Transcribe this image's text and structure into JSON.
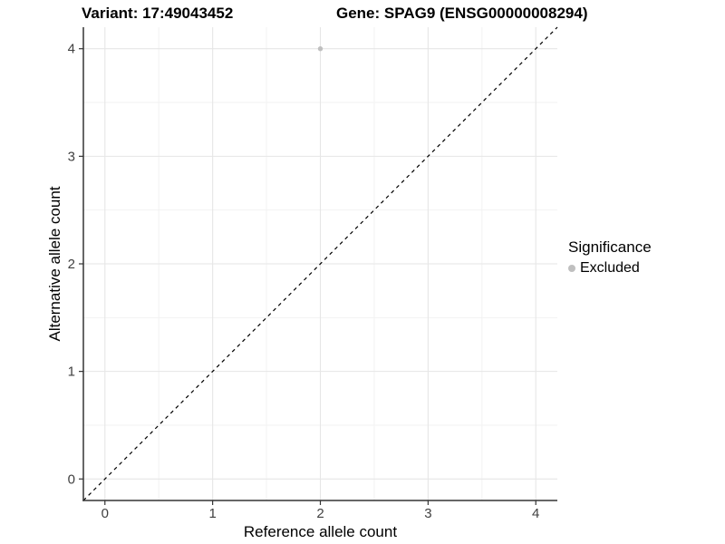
{
  "chart_data": {
    "type": "scatter",
    "title_left": "Variant: 17:49043452",
    "title_right": "Gene: SPAG9 (ENSG00000008294)",
    "xlabel": "Reference allele count",
    "ylabel": "Alternative allele count",
    "xlim": [
      -0.2,
      4.2
    ],
    "ylim": [
      -0.2,
      4.2
    ],
    "x_ticks": [
      0,
      1,
      2,
      3,
      4
    ],
    "y_ticks": [
      0,
      1,
      2,
      3,
      4
    ],
    "x_minor_ticks": [
      0.5,
      1.5,
      2.5,
      3.5
    ],
    "y_minor_ticks": [
      0.5,
      1.5,
      2.5,
      3.5
    ],
    "grid": true,
    "series": [
      {
        "name": "Excluded",
        "color": "#bfbfbf",
        "points": [
          {
            "x": 2,
            "y": 4
          }
        ]
      }
    ],
    "reference_line": {
      "type": "identity",
      "style": "dashed",
      "color": "#000000"
    },
    "legend": {
      "title": "Significance",
      "position": "right",
      "entries": [
        {
          "label": "Excluded",
          "color": "#bfbfbf"
        }
      ]
    },
    "colors": {
      "background": "#ffffff",
      "grid_major": "#e6e6e6",
      "grid_minor": "#f2f2f2",
      "axis_line": "#333333",
      "tick_label": "#404040",
      "title": "#000000"
    }
  }
}
